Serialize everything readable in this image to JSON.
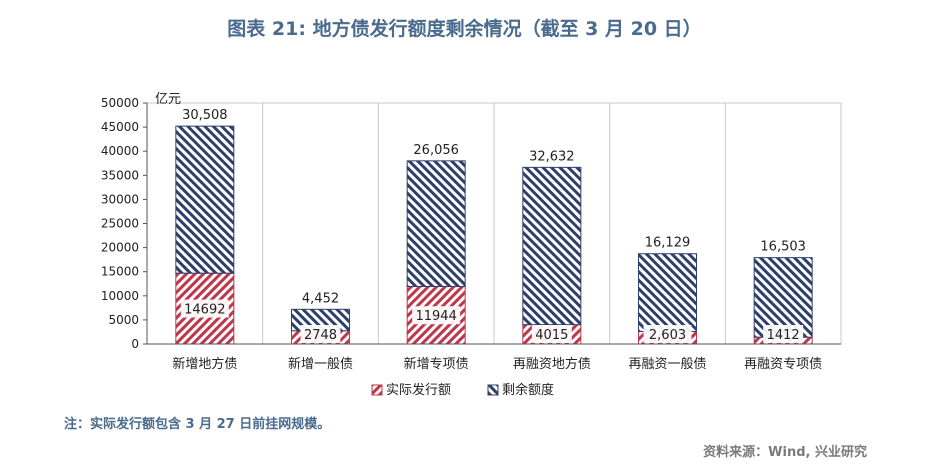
{
  "title": "图表 21: 地方债发行额度剩余情况（截至 3 月 20 日）",
  "note": "注：实际发行额包含 3 月 27 日前挂网规模。",
  "source": "资料来源：Wind, 兴业研究",
  "colors": {
    "issued": "#c0364a",
    "remaining": "#2f3f6b",
    "title": "#4a6a8e"
  },
  "chart_data": {
    "type": "bar",
    "stacked": true,
    "unit_label": "亿元",
    "ylim": [
      0,
      50000
    ],
    "ytick_step": 5000,
    "grid": true,
    "legend_position": "bottom",
    "categories": [
      "新增地方债",
      "新增一般债",
      "新增专项债",
      "再融资地方债",
      "再融资一般债",
      "再融资专项债"
    ],
    "series": [
      {
        "name": "实际发行额",
        "values": [
          14692,
          2748,
          11944,
          4015,
          2603,
          1412
        ],
        "labels": [
          "14692",
          "2748",
          "11944",
          "4015",
          "2,603",
          "1412"
        ]
      },
      {
        "name": "剩余额度",
        "values": [
          30508,
          4452,
          26056,
          32632,
          16129,
          16503
        ],
        "labels": [
          "30,508",
          "4,452",
          "26,056",
          "32,632",
          "16,129",
          "16,503"
        ]
      }
    ]
  }
}
